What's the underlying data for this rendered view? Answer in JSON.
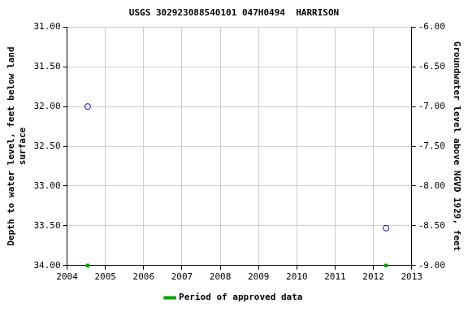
{
  "chart_data": {
    "type": "scatter",
    "title": "USGS 302923088540101 047H0494  HARRISON",
    "x_label": "",
    "y_label": [
      "Depth to water level, feet below land",
      "surface"
    ],
    "y2_label": "Groundwater level above NGVD 1929, feet",
    "series": [
      {
        "x": [
          2004.54,
          2012.33
        ],
        "values": [
          32.0,
          33.53
        ],
        "color": "#0000cc",
        "marker": "circle-open"
      },
      {
        "name": "Period of approved data",
        "x": [
          2004.54,
          2012.33
        ],
        "values": [
          34.0,
          34.0
        ],
        "color": "#00a000",
        "marker": "square"
      }
    ],
    "xlim": [
      2004,
      2013
    ],
    "xticks": [
      2004,
      2005,
      2006,
      2007,
      2008,
      2009,
      2010,
      2011,
      2012,
      2013
    ],
    "ylim": [
      34,
      31
    ],
    "yticks": [
      {
        "value": 31,
        "label": "31.00"
      },
      {
        "value": 31.5,
        "label": "31.50"
      },
      {
        "value": 32,
        "label": "32.00"
      },
      {
        "value": 32.5,
        "label": "32.50"
      },
      {
        "value": 33,
        "label": "33.00"
      },
      {
        "value": 33.5,
        "label": "33.50"
      },
      {
        "value": 34,
        "label": "34.00"
      }
    ],
    "y2lim": [
      -9,
      -6
    ],
    "y2ticks": [
      {
        "value": -6,
        "label": "-6.00"
      },
      {
        "value": -6.5,
        "label": "-6.50"
      },
      {
        "value": -7,
        "label": "-7.00"
      },
      {
        "value": -7.5,
        "label": "-7.50"
      },
      {
        "value": -8,
        "label": "-8.00"
      },
      {
        "value": -8.5,
        "label": "-8.50"
      },
      {
        "value": -9,
        "label": "-9.00"
      }
    ],
    "grid": true,
    "legend": "bottom"
  }
}
